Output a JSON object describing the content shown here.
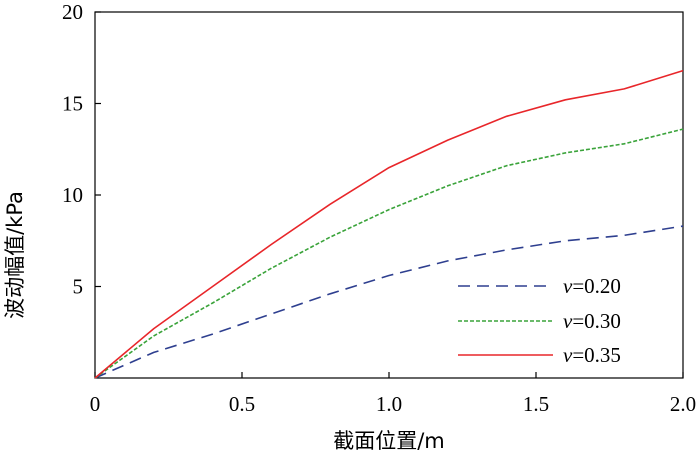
{
  "chart_data": {
    "type": "line",
    "title": "",
    "xlabel": "截面位置/m",
    "ylabel": "波动幅值/kPa",
    "xlim": [
      0,
      2.0
    ],
    "ylim": [
      0,
      20
    ],
    "xticks": [
      0,
      0.5,
      1.0,
      1.5,
      2.0
    ],
    "xtick_labels": [
      "0",
      "0.5",
      "1.0",
      "1.5",
      "2.0"
    ],
    "yticks": [
      5,
      10,
      15,
      20
    ],
    "ytick_labels": [
      "5",
      "10",
      "15",
      "20"
    ],
    "grid": false,
    "legend_position": "bottom-right",
    "series": [
      {
        "name": "v=0.20",
        "var": "v",
        "value_label": "=0.20",
        "color": "#2e3f8f",
        "style": "dashed",
        "x": [
          0.0,
          0.2,
          0.4,
          0.6,
          0.8,
          1.0,
          1.2,
          1.4,
          1.6,
          1.8,
          2.0
        ],
        "y": [
          0.0,
          1.4,
          2.4,
          3.5,
          4.6,
          5.6,
          6.4,
          7.0,
          7.5,
          7.8,
          8.3
        ]
      },
      {
        "name": "v=0.30",
        "var": "v",
        "value_label": "=0.30",
        "color": "#3aa33a",
        "style": "dotted",
        "x": [
          0.0,
          0.2,
          0.4,
          0.6,
          0.8,
          1.0,
          1.2,
          1.4,
          1.6,
          1.8,
          2.0
        ],
        "y": [
          0.0,
          2.3,
          4.1,
          6.0,
          7.7,
          9.2,
          10.5,
          11.6,
          12.3,
          12.8,
          13.6
        ]
      },
      {
        "name": "v=0.35",
        "var": "v",
        "value_label": "=0.35",
        "color": "#e8262a",
        "style": "solid",
        "x": [
          0.0,
          0.2,
          0.4,
          0.6,
          0.8,
          1.0,
          1.2,
          1.4,
          1.6,
          1.8,
          2.0
        ],
        "y": [
          0.0,
          2.7,
          5.0,
          7.3,
          9.5,
          11.5,
          13.0,
          14.3,
          15.2,
          15.8,
          16.8
        ]
      }
    ]
  }
}
